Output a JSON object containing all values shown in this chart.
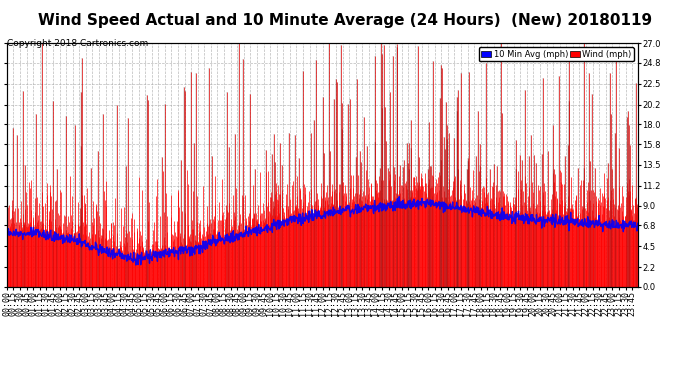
{
  "title": "Wind Speed Actual and 10 Minute Average (24 Hours)  (New) 20180119",
  "copyright": "Copyright 2018 Cartronics.com",
  "legend_labels": [
    "10 Min Avg (mph)",
    "Wind (mph)"
  ],
  "legend_colors": [
    "#0000ff",
    "#ff0000"
  ],
  "yticks": [
    0.0,
    2.2,
    4.5,
    6.8,
    9.0,
    11.2,
    13.5,
    15.8,
    18.0,
    20.2,
    22.5,
    24.8,
    27.0
  ],
  "ymax": 27.0,
  "ymin": 0.0,
  "bg_color": "#ffffff",
  "plot_bg_color": "#ffffff",
  "grid_color": "#aaaaaa",
  "wind_color": "#ff0000",
  "avg_color": "#0000ff",
  "dark_color": "#333333",
  "title_fontsize": 11,
  "tick_fontsize": 6,
  "copyright_fontsize": 6.5
}
